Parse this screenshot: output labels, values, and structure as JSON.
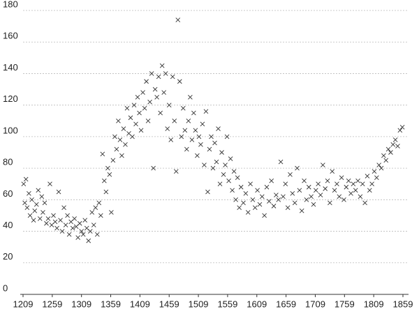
{
  "chart_data": {
    "type": "scatter",
    "color": "#333333",
    "marker": "x",
    "grid": true,
    "xlim": [
      1209,
      1859
    ],
    "xticks": [
      1209,
      1259,
      1309,
      1359,
      1409,
      1459,
      1509,
      1559,
      1609,
      1659,
      1709,
      1759,
      1809,
      1859
    ],
    "ylim": [
      0,
      180
    ],
    "yticks": [
      0,
      20,
      40,
      60,
      80,
      100,
      120,
      140,
      160,
      180
    ],
    "x": [
      1210,
      1212,
      1214,
      1216,
      1219,
      1221,
      1224,
      1227,
      1229,
      1232,
      1235,
      1238,
      1241,
      1243,
      1246,
      1249,
      1252,
      1255,
      1258,
      1261,
      1264,
      1267,
      1270,
      1273,
      1276,
      1279,
      1282,
      1285,
      1288,
      1291,
      1294,
      1297,
      1300,
      1303,
      1306,
      1309,
      1312,
      1315,
      1318,
      1321,
      1324,
      1327,
      1330,
      1333,
      1336,
      1339,
      1342,
      1345,
      1348,
      1351,
      1354,
      1357,
      1360,
      1363,
      1366,
      1369,
      1372,
      1375,
      1378,
      1381,
      1384,
      1387,
      1390,
      1393,
      1396,
      1399,
      1402,
      1405,
      1408,
      1411,
      1414,
      1417,
      1420,
      1423,
      1426,
      1429,
      1432,
      1435,
      1438,
      1441,
      1444,
      1447,
      1450,
      1453,
      1456,
      1459,
      1462,
      1465,
      1468,
      1471,
      1474,
      1477,
      1480,
      1483,
      1486,
      1489,
      1492,
      1495,
      1498,
      1501,
      1504,
      1507,
      1510,
      1513,
      1516,
      1519,
      1522,
      1525,
      1528,
      1531,
      1534,
      1537,
      1540,
      1543,
      1546,
      1549,
      1552,
      1555,
      1558,
      1561,
      1564,
      1567,
      1570,
      1573,
      1576,
      1579,
      1582,
      1586,
      1590,
      1594,
      1598,
      1602,
      1606,
      1610,
      1614,
      1618,
      1622,
      1626,
      1630,
      1634,
      1638,
      1642,
      1646,
      1650,
      1654,
      1658,
      1662,
      1666,
      1670,
      1674,
      1678,
      1682,
      1686,
      1690,
      1694,
      1698,
      1702,
      1706,
      1710,
      1714,
      1718,
      1722,
      1726,
      1730,
      1734,
      1738,
      1742,
      1746,
      1750,
      1754,
      1758,
      1762,
      1766,
      1770,
      1774,
      1778,
      1782,
      1786,
      1790,
      1794,
      1798,
      1802,
      1806,
      1810,
      1814,
      1818,
      1822,
      1826,
      1830,
      1834,
      1838,
      1842,
      1846,
      1850,
      1854,
      1858
    ],
    "values": [
      70,
      58,
      73,
      55,
      64,
      50,
      60,
      47,
      53,
      57,
      66,
      48,
      62,
      52,
      58,
      45,
      48,
      70,
      44,
      50,
      46,
      42,
      65,
      47,
      40,
      55,
      44,
      50,
      38,
      46,
      42,
      48,
      43,
      36,
      45,
      40,
      38,
      47,
      42,
      34,
      40,
      52,
      44,
      55,
      38,
      58,
      50,
      89,
      72,
      65,
      80,
      76,
      52,
      85,
      100,
      92,
      110,
      98,
      88,
      105,
      95,
      118,
      102,
      112,
      100,
      120,
      108,
      125,
      115,
      104,
      128,
      118,
      135,
      110,
      122,
      140,
      80,
      130,
      125,
      138,
      115,
      145,
      128,
      140,
      105,
      120,
      98,
      138,
      110,
      78,
      174,
      135,
      100,
      118,
      104,
      92,
      110,
      125,
      98,
      115,
      104,
      88,
      100,
      95,
      108,
      82,
      116,
      65,
      92,
      100,
      80,
      96,
      84,
      105,
      70,
      90,
      76,
      82,
      100,
      72,
      86,
      66,
      78,
      60,
      74,
      55,
      68,
      58,
      64,
      52,
      70,
      60,
      55,
      66,
      57,
      62,
      50,
      68,
      59,
      72,
      56,
      63,
      60,
      84,
      62,
      70,
      55,
      76,
      64,
      58,
      80,
      66,
      53,
      72,
      60,
      68,
      62,
      57,
      66,
      70,
      63,
      82,
      67,
      72,
      58,
      78,
      66,
      70,
      62,
      74,
      60,
      68,
      72,
      64,
      70,
      66,
      72,
      62,
      70,
      58,
      75,
      66,
      70,
      78,
      74,
      82,
      80,
      88,
      85,
      92,
      90,
      95,
      98,
      94,
      104,
      106
    ]
  }
}
